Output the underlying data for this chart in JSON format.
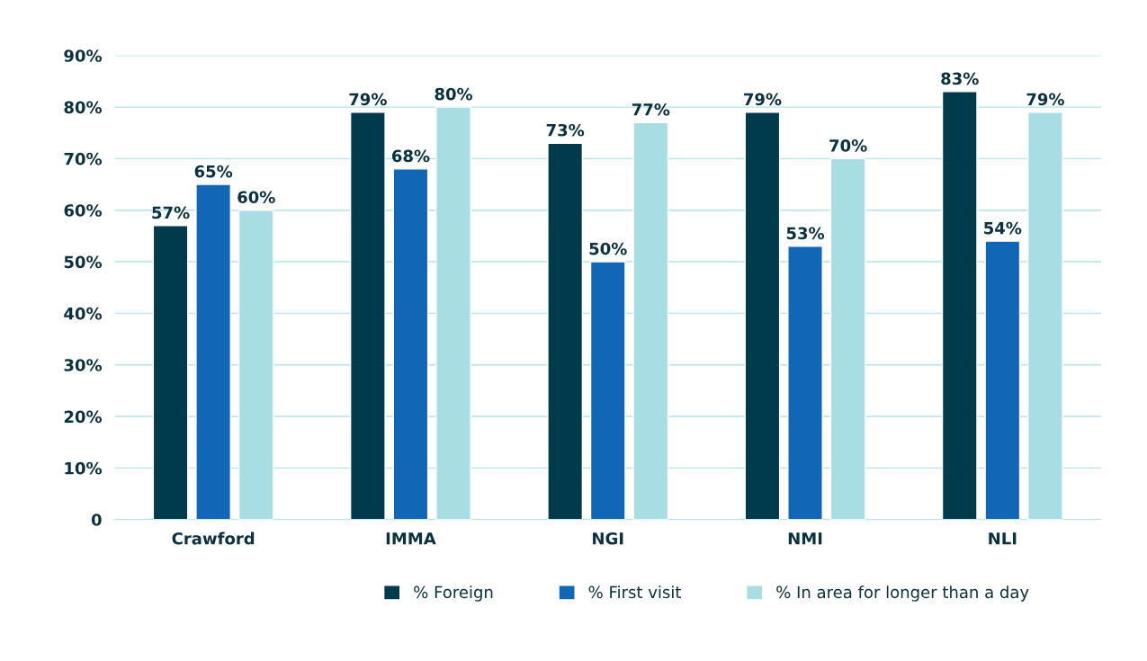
{
  "chart_data": {
    "type": "bar",
    "categories": [
      "Crawford",
      "IMMA",
      "NGI",
      "NMI",
      "NLI"
    ],
    "series": [
      {
        "name": "% Foreign",
        "color": "#003a4d",
        "values": [
          57,
          79,
          73,
          79,
          83
        ],
        "value_labels": [
          "57%",
          "79%",
          "73%",
          "79%",
          "83%"
        ]
      },
      {
        "name": "% First visit",
        "color": "#1167b5",
        "values": [
          65,
          68,
          50,
          53,
          54
        ],
        "value_labels": [
          "65%",
          "68%",
          "50%",
          "53%",
          "54%"
        ]
      },
      {
        "name": "% In area for longer than a day",
        "color": "#a8dde3",
        "values": [
          60,
          80,
          77,
          70,
          79
        ],
        "value_labels": [
          "60%",
          "80%",
          "77%",
          "70%",
          "79%"
        ]
      }
    ],
    "ylim": [
      0,
      90
    ],
    "yticks": [
      {
        "value": 0,
        "label": "0"
      },
      {
        "value": 10,
        "label": "10%"
      },
      {
        "value": 20,
        "label": "20%"
      },
      {
        "value": 30,
        "label": "30%"
      },
      {
        "value": 40,
        "label": "40%"
      },
      {
        "value": 50,
        "label": "50%"
      },
      {
        "value": 60,
        "label": "60%"
      },
      {
        "value": 70,
        "label": "70%"
      },
      {
        "value": 80,
        "label": "80%"
      },
      {
        "value": 90,
        "label": "90%"
      }
    ],
    "grid": "y",
    "legend": "bottom"
  }
}
